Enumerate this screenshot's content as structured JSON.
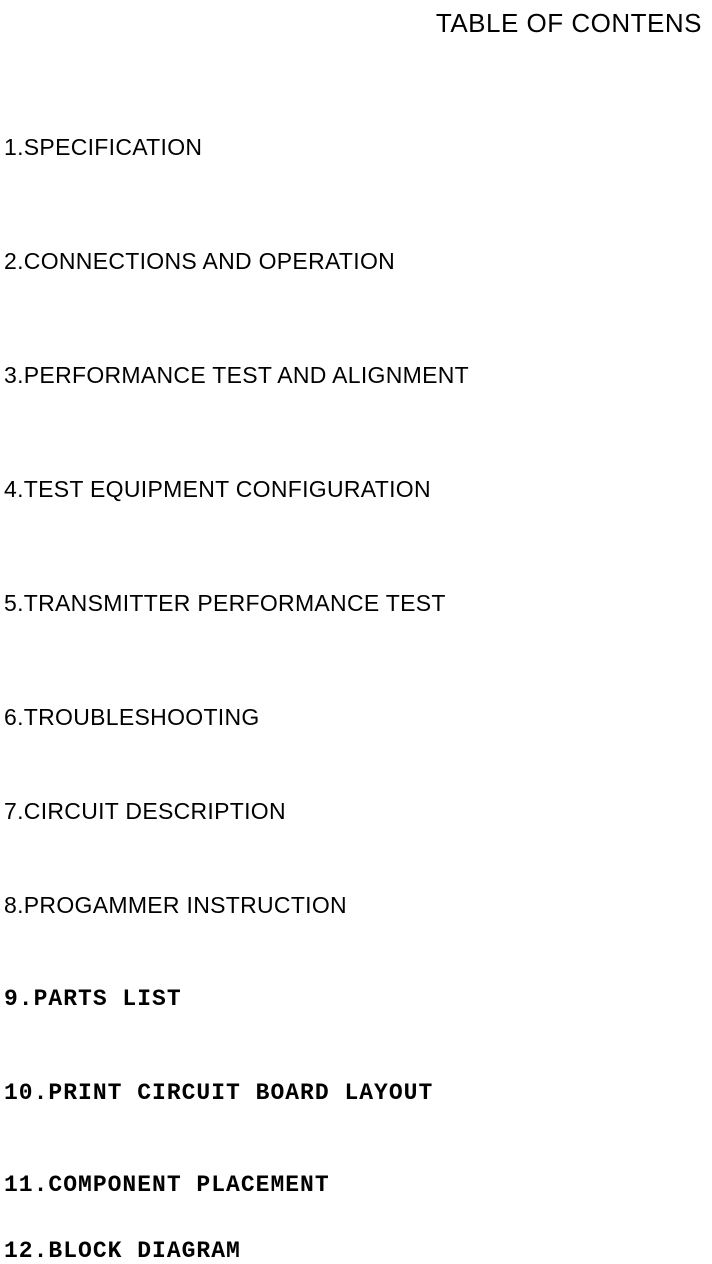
{
  "title": "TABLE OF CONTENS",
  "items": [
    {
      "text": "1.SPECIFICATION",
      "style": "sans"
    },
    {
      "text": "2.CONNECTIONS AND OPERATION",
      "style": "sans"
    },
    {
      "text": "3.PERFORMANCE TEST AND ALIGNMENT",
      "style": "sans"
    },
    {
      "text": "4.TEST EQUIPMENT CONFIGURATION",
      "style": "sans"
    },
    {
      "text": "5.TRANSMITTER PERFORMANCE TEST",
      "style": "sans"
    },
    {
      "text": "6.TROUBLESHOOTING",
      "style": "sans"
    },
    {
      "text": "7.CIRCUIT DESCRIPTION",
      "style": "sans"
    },
    {
      "text": "8.PROGAMMER INSTRUCTION",
      "style": "sans"
    },
    {
      "text": "9.PARTS LIST",
      "style": "mono"
    },
    {
      "text": "10.PRINT CIRCUIT BOARD LAYOUT",
      "style": "mono"
    },
    {
      "text": "11.COMPONENT PLACEMENT",
      "style": "mono"
    },
    {
      "text": "12.BLOCK DIAGRAM",
      "style": "mono"
    }
  ],
  "styles": {
    "background_color": "#ffffff",
    "text_color": "#000000",
    "title_fontsize": 26,
    "item_fontsize": 23,
    "sans_font": "Arial",
    "mono_font": "Courier New"
  }
}
